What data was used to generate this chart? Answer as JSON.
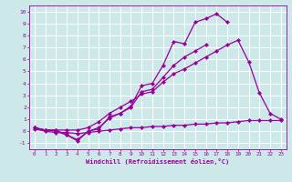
{
  "xlabel": "Windchill (Refroidissement éolien,°C)",
  "x": [
    0,
    1,
    2,
    3,
    4,
    5,
    6,
    7,
    8,
    9,
    10,
    11,
    12,
    13,
    14,
    15,
    16,
    17,
    18,
    19,
    20,
    21,
    22,
    23
  ],
  "line_wavy": [
    0.3,
    0.1,
    0.1,
    -0.3,
    -0.8,
    0.0,
    0.2,
    1.2,
    1.5,
    2.1,
    3.8,
    4.0,
    5.5,
    7.5,
    7.3,
    9.1,
    9.4,
    9.8,
    9.1,
    null,
    null,
    null,
    null,
    null
  ],
  "line_diag_top": [
    0.3,
    0.1,
    0.1,
    0.1,
    0.1,
    0.3,
    0.8,
    1.5,
    2.0,
    2.5,
    3.1,
    3.3,
    4.1,
    4.8,
    5.2,
    5.7,
    6.2,
    6.7,
    7.2,
    7.6,
    5.8,
    3.2,
    1.5,
    1.0
  ],
  "line_diag_bot": [
    0.3,
    0.1,
    0.0,
    -0.3,
    -0.7,
    0.0,
    0.3,
    1.1,
    1.5,
    2.0,
    3.3,
    3.5,
    4.5,
    5.5,
    6.2,
    6.7,
    7.2,
    null,
    null,
    null,
    null,
    null,
    null,
    null
  ],
  "line_flat": [
    0.2,
    0.0,
    -0.1,
    -0.1,
    -0.2,
    -0.1,
    0.0,
    0.1,
    0.2,
    0.3,
    0.3,
    0.4,
    0.4,
    0.5,
    0.5,
    0.6,
    0.6,
    0.7,
    0.7,
    0.8,
    0.9,
    0.9,
    0.9,
    0.9
  ],
  "ylim": [
    -1.5,
    10.5
  ],
  "xlim": [
    -0.5,
    23.5
  ],
  "yticks": [
    -1,
    0,
    1,
    2,
    3,
    4,
    5,
    6,
    7,
    8,
    9,
    10
  ],
  "xticks": [
    0,
    1,
    2,
    3,
    4,
    5,
    6,
    7,
    8,
    9,
    10,
    11,
    12,
    13,
    14,
    15,
    16,
    17,
    18,
    19,
    20,
    21,
    22,
    23
  ],
  "line_color": "#990099",
  "bg_color": "#cce8e8",
  "grid_color": "#aacccc",
  "marker": "D",
  "marker_size": 2.2,
  "linewidth": 0.9
}
